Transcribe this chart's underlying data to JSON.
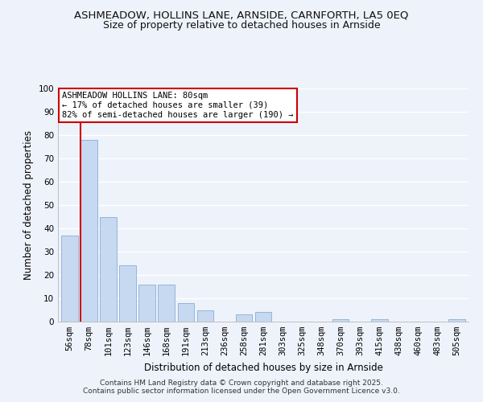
{
  "title1": "ASHMEADOW, HOLLINS LANE, ARNSIDE, CARNFORTH, LA5 0EQ",
  "title2": "Size of property relative to detached houses in Arnside",
  "xlabel": "Distribution of detached houses by size in Arnside",
  "ylabel": "Number of detached properties",
  "bar_labels": [
    "56sqm",
    "78sqm",
    "101sqm",
    "123sqm",
    "146sqm",
    "168sqm",
    "191sqm",
    "213sqm",
    "236sqm",
    "258sqm",
    "281sqm",
    "303sqm",
    "325sqm",
    "348sqm",
    "370sqm",
    "393sqm",
    "415sqm",
    "438sqm",
    "460sqm",
    "483sqm",
    "505sqm"
  ],
  "bar_values": [
    37,
    78,
    45,
    24,
    16,
    16,
    8,
    5,
    0,
    3,
    4,
    0,
    0,
    0,
    1,
    0,
    1,
    0,
    0,
    0,
    1
  ],
  "bar_color": "#c6d9f0",
  "bar_edge_color": "#8aaed4",
  "ylim": [
    0,
    100
  ],
  "yticks": [
    0,
    10,
    20,
    30,
    40,
    50,
    60,
    70,
    80,
    90,
    100
  ],
  "vline_x": 1,
  "vline_color": "#cc0000",
  "annotation_title": "ASHMEADOW HOLLINS LANE: 80sqm",
  "annotation_line1": "← 17% of detached houses are smaller (39)",
  "annotation_line2": "82% of semi-detached houses are larger (190) →",
  "annotation_box_color": "#ffffff",
  "annotation_box_edge": "#cc0000",
  "footer1": "Contains HM Land Registry data © Crown copyright and database right 2025.",
  "footer2": "Contains public sector information licensed under the Open Government Licence v3.0.",
  "bg_color": "#eef2fb",
  "plot_bg_color": "#eef2fb",
  "grid_color": "#ffffff",
  "title_fontsize": 9.5,
  "subtitle_fontsize": 9.0,
  "axis_label_fontsize": 8.5,
  "tick_fontsize": 7.5,
  "footer_fontsize": 6.5,
  "annotation_fontsize": 7.5
}
